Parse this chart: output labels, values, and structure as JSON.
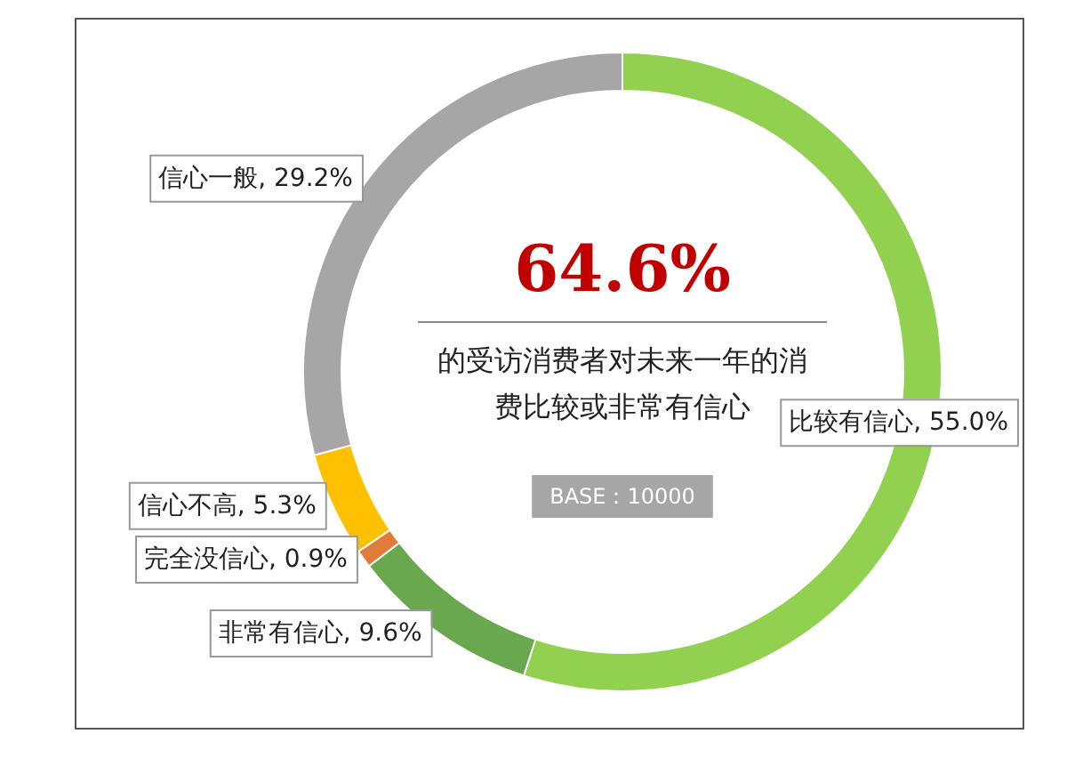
{
  "chart_data": {
    "type": "donut",
    "categories": [
      "比较有信心",
      "非常有信心",
      "完全没信心",
      "信心不高",
      "信心一般"
    ],
    "values": [
      55.0,
      9.6,
      0.9,
      5.3,
      29.2
    ],
    "colors": [
      "#92d050",
      "#6aa84f",
      "#e07b39",
      "#ffc000",
      "#a6a6a6"
    ],
    "value_labels": [
      "55.0%",
      "9.6%",
      "0.9%",
      "5.3%",
      "29.2%"
    ],
    "annotations": [
      "64.6%",
      "的受访消费者对未来一年的消费比较或非常有信心",
      "BASE：10000"
    ],
    "legend": false
  }
}
